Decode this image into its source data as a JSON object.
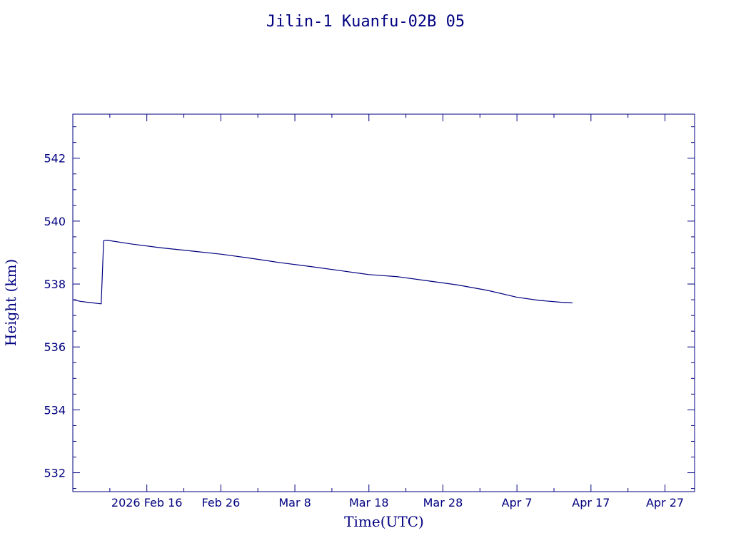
{
  "chart_data": {
    "type": "line",
    "title": "Jilin-1 Kuanfu-02B 05",
    "xlabel": "Time(UTC)",
    "ylabel": "Height (km)",
    "x_axis_type": "date",
    "xlim": [
      "2026-02-06",
      "2026-05-01"
    ],
    "ylim": [
      531.4,
      543.4
    ],
    "color": "#000080",
    "grid": false,
    "x_ticks": [
      {
        "date": "2026-02-16",
        "label": "2026 Feb 16"
      },
      {
        "date": "2026-02-26",
        "label": "Feb 26"
      },
      {
        "date": "2026-03-08",
        "label": "Mar  8"
      },
      {
        "date": "2026-03-18",
        "label": "Mar 18"
      },
      {
        "date": "2026-03-28",
        "label": "Mar 28"
      },
      {
        "date": "2026-04-07",
        "label": "Apr  7"
      },
      {
        "date": "2026-04-17",
        "label": "Apr 17"
      },
      {
        "date": "2026-04-27",
        "label": "Apr 27"
      }
    ],
    "y_ticks": [
      532,
      534,
      536,
      538,
      540,
      542
    ],
    "series": [
      {
        "points": [
          {
            "x": "2026-02-06T00:00",
            "y": 537.5
          },
          {
            "x": "2026-02-07T00:00",
            "y": 537.45
          },
          {
            "x": "2026-02-08T00:00",
            "y": 537.42
          },
          {
            "x": "2026-02-09T20:00",
            "y": 537.37
          },
          {
            "x": "2026-02-10T04:00",
            "y": 539.38
          },
          {
            "x": "2026-02-10T16:00",
            "y": 539.39
          },
          {
            "x": "2026-02-14T00:00",
            "y": 539.27
          },
          {
            "x": "2026-02-18T00:00",
            "y": 539.15
          },
          {
            "x": "2026-02-22T00:00",
            "y": 539.05
          },
          {
            "x": "2026-02-26T00:00",
            "y": 538.95
          },
          {
            "x": "2026-03-02T00:00",
            "y": 538.82
          },
          {
            "x": "2026-03-06T00:00",
            "y": 538.68
          },
          {
            "x": "2026-03-10T00:00",
            "y": 538.56
          },
          {
            "x": "2026-03-14T00:00",
            "y": 538.43
          },
          {
            "x": "2026-03-18T00:00",
            "y": 538.3
          },
          {
            "x": "2026-03-22T00:00",
            "y": 538.23
          },
          {
            "x": "2026-03-26T00:00",
            "y": 538.1
          },
          {
            "x": "2026-03-30T00:00",
            "y": 537.97
          },
          {
            "x": "2026-04-03T00:00",
            "y": 537.8
          },
          {
            "x": "2026-04-07T00:00",
            "y": 537.58
          },
          {
            "x": "2026-04-10T00:00",
            "y": 537.48
          },
          {
            "x": "2026-04-13T00:00",
            "y": 537.42
          },
          {
            "x": "2026-04-14T12:00",
            "y": 537.4
          }
        ]
      }
    ]
  }
}
